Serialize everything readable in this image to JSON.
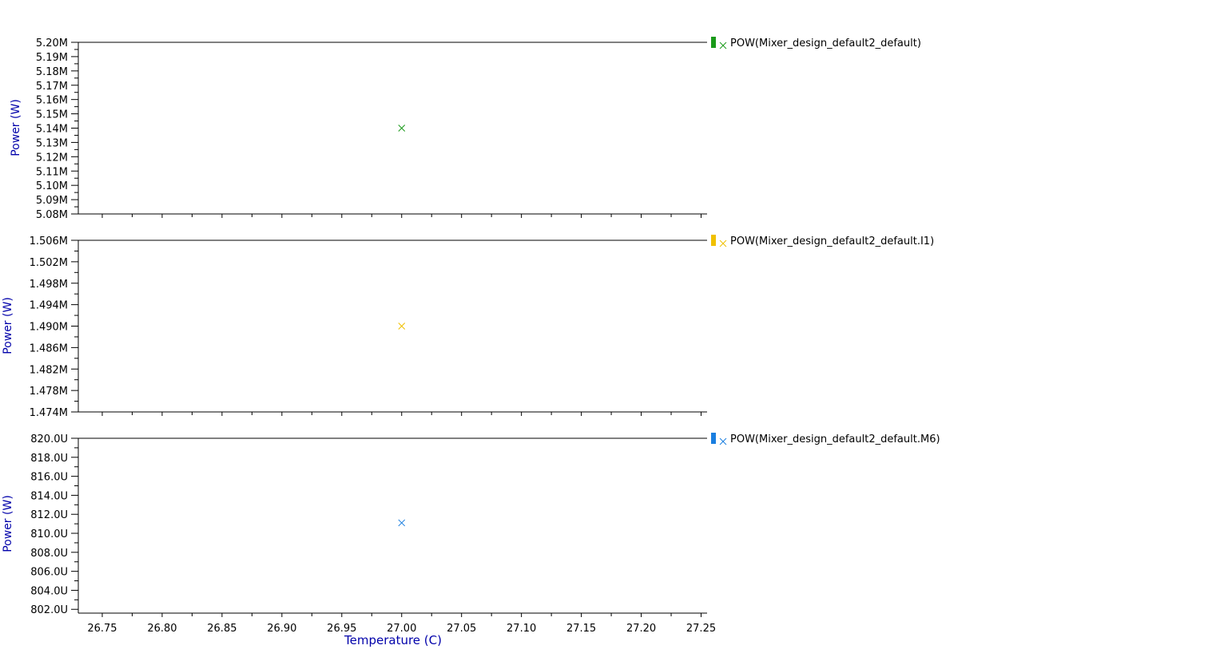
{
  "chart_data": [
    {
      "type": "scatter",
      "ylabel": "Power (W)",
      "xlim": [
        26.73,
        27.255
      ],
      "ylim": [
        5.08,
        5.2
      ],
      "yticks": [
        5.2,
        5.19,
        5.18,
        5.17,
        5.16,
        5.15,
        5.14,
        5.13,
        5.12,
        5.11,
        5.1,
        5.09,
        5.08
      ],
      "ytick_labels": [
        "5.20M",
        "5.19M",
        "5.18M",
        "5.17M",
        "5.16M",
        "5.15M",
        "5.14M",
        "5.13M",
        "5.12M",
        "5.11M",
        "5.10M",
        "5.09M",
        "5.08M"
      ],
      "series": [
        {
          "name": "POW(Mixer_design_default2_default)",
          "color": "#1a9a1a",
          "x": [
            27.0
          ],
          "y": [
            5.14
          ]
        }
      ],
      "legend_position": "right"
    },
    {
      "type": "scatter",
      "ylabel": "Power (W)",
      "xlim": [
        26.73,
        27.255
      ],
      "ylim": [
        1.474,
        1.506
      ],
      "yticks": [
        1.506,
        1.502,
        1.498,
        1.494,
        1.49,
        1.486,
        1.482,
        1.478,
        1.474
      ],
      "ytick_labels": [
        "1.506M",
        "1.502M",
        "1.498M",
        "1.494M",
        "1.490M",
        "1.486M",
        "1.482M",
        "1.478M",
        "1.474M"
      ],
      "series": [
        {
          "name": "POW(Mixer_design_default2_default.I1)",
          "color": "#f0c000",
          "x": [
            27.0
          ],
          "y": [
            1.49
          ]
        }
      ],
      "legend_position": "right"
    },
    {
      "type": "scatter",
      "ylabel": "Power (W)",
      "xlabel": "Temperature (C)",
      "xlim": [
        26.73,
        27.255
      ],
      "ylim": [
        801.6,
        820.0
      ],
      "yticks": [
        820.0,
        818.0,
        816.0,
        814.0,
        812.0,
        810.0,
        808.0,
        806.0,
        804.0,
        802.0
      ],
      "ytick_labels": [
        "820.0U",
        "818.0U",
        "816.0U",
        "814.0U",
        "812.0U",
        "810.0U",
        "808.0U",
        "806.0U",
        "804.0U",
        "802.0U"
      ],
      "xticks": [
        26.75,
        26.8,
        26.85,
        26.9,
        26.95,
        27.0,
        27.05,
        27.1,
        27.15,
        27.2,
        27.25
      ],
      "xtick_labels": [
        "26.75",
        "26.80",
        "26.85",
        "26.90",
        "26.95",
        "27.00",
        "27.05",
        "27.10",
        "27.15",
        "27.20",
        "27.25"
      ],
      "series": [
        {
          "name": "POW(Mixer_design_default2_default.M6)",
          "color": "#1a7ee0",
          "x": [
            27.0
          ],
          "y": [
            811.1
          ]
        }
      ],
      "legend_position": "right"
    }
  ]
}
